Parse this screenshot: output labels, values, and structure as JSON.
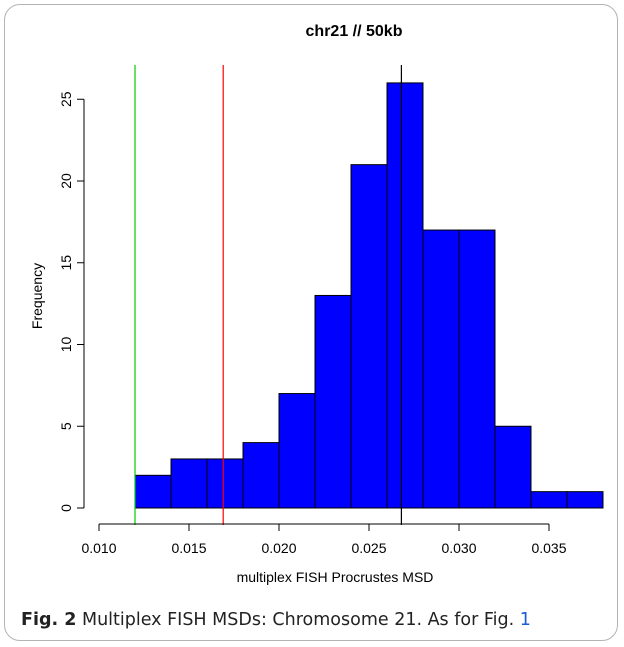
{
  "chart_data": {
    "type": "bar",
    "title": "chr21 // 50kb",
    "xlabel": "multiplex FISH Procrustes MSD",
    "ylabel": "Frequency",
    "bins": [
      {
        "x0": 0.012,
        "x1": 0.014,
        "count": 2
      },
      {
        "x0": 0.014,
        "x1": 0.016,
        "count": 3
      },
      {
        "x0": 0.016,
        "x1": 0.018,
        "count": 3
      },
      {
        "x0": 0.018,
        "x1": 0.02,
        "count": 4
      },
      {
        "x0": 0.02,
        "x1": 0.022,
        "count": 7
      },
      {
        "x0": 0.022,
        "x1": 0.024,
        "count": 13
      },
      {
        "x0": 0.024,
        "x1": 0.026,
        "count": 21
      },
      {
        "x0": 0.026,
        "x1": 0.028,
        "count": 26
      },
      {
        "x0": 0.028,
        "x1": 0.03,
        "count": 17
      },
      {
        "x0": 0.03,
        "x1": 0.032,
        "count": 17
      },
      {
        "x0": 0.032,
        "x1": 0.034,
        "count": 5
      },
      {
        "x0": 0.034,
        "x1": 0.036,
        "count": 1
      },
      {
        "x0": 0.036,
        "x1": 0.038,
        "count": 1
      }
    ],
    "bar_color": "#0000ff",
    "xticks": [
      "0.010",
      "0.015",
      "0.020",
      "0.025",
      "0.030",
      "0.035"
    ],
    "yticks": [
      "0",
      "5",
      "10",
      "15",
      "20",
      "25"
    ],
    "xlim": [
      0.01,
      0.038
    ],
    "ylim": [
      0,
      26
    ],
    "vlines": [
      {
        "x": 0.012,
        "color": "#00cc00"
      },
      {
        "x": 0.0169,
        "color": "#ff0000"
      },
      {
        "x": 0.0268,
        "color": "#000000"
      }
    ]
  },
  "caption": {
    "label": "Fig. 2",
    "text": " Multiplex FISH MSDs: Chromosome 21. As for Fig. ",
    "ref": "1"
  }
}
